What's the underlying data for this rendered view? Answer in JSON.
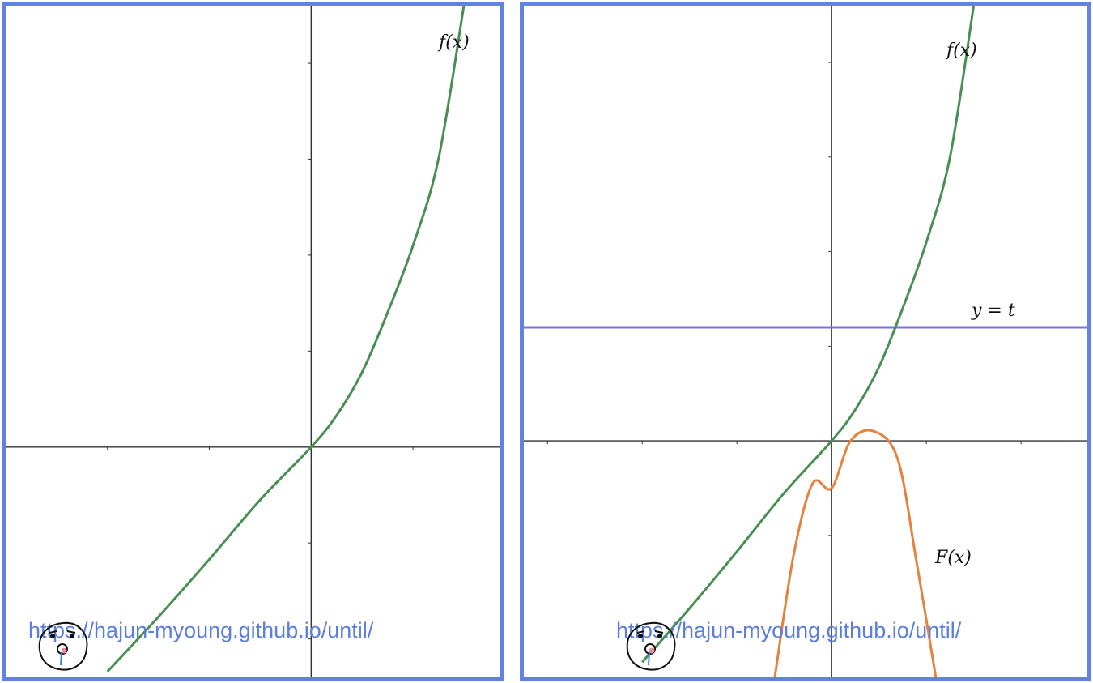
{
  "chart_data": [
    {
      "type": "line",
      "xlim": [
        -3,
        1.85
      ],
      "ylim": [
        -2.4,
        4.6
      ],
      "grid": false,
      "series": [
        {
          "name": "f(x)",
          "color": "#4a8f52",
          "x": [
            -2,
            -1.5,
            -1,
            -0.5,
            0,
            0.25,
            0.5,
            0.75,
            1,
            1.25,
            1.5
          ],
          "y": [
            -2.34,
            -1.77,
            -1.17,
            -0.55,
            0,
            0.33,
            0.78,
            1.4,
            2.1,
            3.0,
            4.6
          ]
        }
      ]
    },
    {
      "type": "line",
      "xlim": [
        -3.25,
        2.7
      ],
      "ylim": [
        -2.5,
        4.6
      ],
      "grid": false,
      "series": [
        {
          "name": "f(x)",
          "color": "#4a8f52",
          "x": [
            -2,
            -1.5,
            -1,
            -0.5,
            0,
            0.25,
            0.5,
            0.75,
            1,
            1.25,
            1.5
          ],
          "y": [
            -2.34,
            -1.77,
            -1.17,
            -0.55,
            0,
            0.33,
            0.78,
            1.4,
            2.1,
            3.0,
            4.6
          ]
        },
        {
          "name": "F(x)",
          "color": "#e5823e",
          "x": [
            -0.6,
            -0.4,
            -0.2,
            0,
            0.2,
            0.45,
            0.7,
            0.9,
            1.1
          ],
          "y": [
            -2.5,
            -1.2,
            -0.45,
            -0.5,
            0.0,
            0.1,
            -0.2,
            -1.3,
            -2.5
          ]
        },
        {
          "name": "y = t",
          "color": "#7a72e0",
          "x": [
            -3.25,
            2.7
          ],
          "y": [
            1.2,
            1.2
          ]
        }
      ]
    }
  ],
  "panels": {
    "left": {
      "labels": {
        "f": "f(x)"
      }
    },
    "right": {
      "labels": {
        "f": "f(x)",
        "F": "F(x)",
        "t": "y = t"
      }
    }
  },
  "watermark": {
    "text": "https://hajun-myoung.github.io/until/"
  }
}
